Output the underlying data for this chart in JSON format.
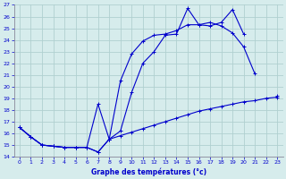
{
  "xlabel": "Graphe des températures (°c)",
  "xlim": [
    -0.5,
    23.5
  ],
  "ylim": [
    14,
    27
  ],
  "xticks": [
    0,
    1,
    2,
    3,
    4,
    5,
    6,
    7,
    8,
    9,
    10,
    11,
    12,
    13,
    14,
    15,
    16,
    17,
    18,
    19,
    20,
    21,
    22,
    23
  ],
  "yticks": [
    14,
    15,
    16,
    17,
    18,
    19,
    20,
    21,
    22,
    23,
    24,
    25,
    26,
    27
  ],
  "bg_color": "#d6ecec",
  "grid_color": "#b0d0d0",
  "line_color": "#0000cc",
  "line1_x": [
    0,
    1,
    2,
    3,
    4,
    5,
    6,
    7,
    8,
    9,
    10,
    11,
    12,
    13,
    14,
    15,
    16,
    17,
    18,
    19,
    20,
    21,
    22,
    23
  ],
  "line1_y": [
    16.5,
    15.7,
    15.0,
    14.9,
    14.8,
    14.8,
    14.8,
    14.4,
    15.5,
    15.8,
    16.1,
    16.4,
    16.7,
    17.0,
    17.3,
    17.6,
    17.9,
    18.1,
    18.3,
    18.5,
    18.7,
    18.8,
    19.0,
    19.1
  ],
  "line2_x": [
    0,
    1,
    2,
    3,
    4,
    5,
    6,
    7,
    8,
    9,
    10,
    11,
    12,
    13,
    14,
    15,
    16,
    17,
    18,
    19,
    20,
    21,
    22,
    23
  ],
  "line2_y": [
    16.5,
    15.7,
    15.0,
    14.9,
    14.8,
    14.8,
    14.8,
    14.4,
    15.5,
    20.5,
    22.8,
    23.9,
    24.4,
    24.5,
    24.8,
    25.3,
    25.3,
    25.5,
    25.2,
    24.6,
    23.4,
    21.1,
    null,
    null
  ],
  "line3_x": [
    0,
    1,
    2,
    3,
    4,
    5,
    6,
    7,
    8,
    9,
    10,
    11,
    12,
    13,
    14,
    15,
    16,
    17,
    18,
    19,
    20,
    21,
    22,
    23
  ],
  "line3_y": [
    16.5,
    15.7,
    15.0,
    14.9,
    14.8,
    14.8,
    14.8,
    18.5,
    15.5,
    16.2,
    19.5,
    22.0,
    23.0,
    24.4,
    24.5,
    26.7,
    25.3,
    25.2,
    25.5,
    26.6,
    24.5,
    null,
    null,
    19.2
  ]
}
